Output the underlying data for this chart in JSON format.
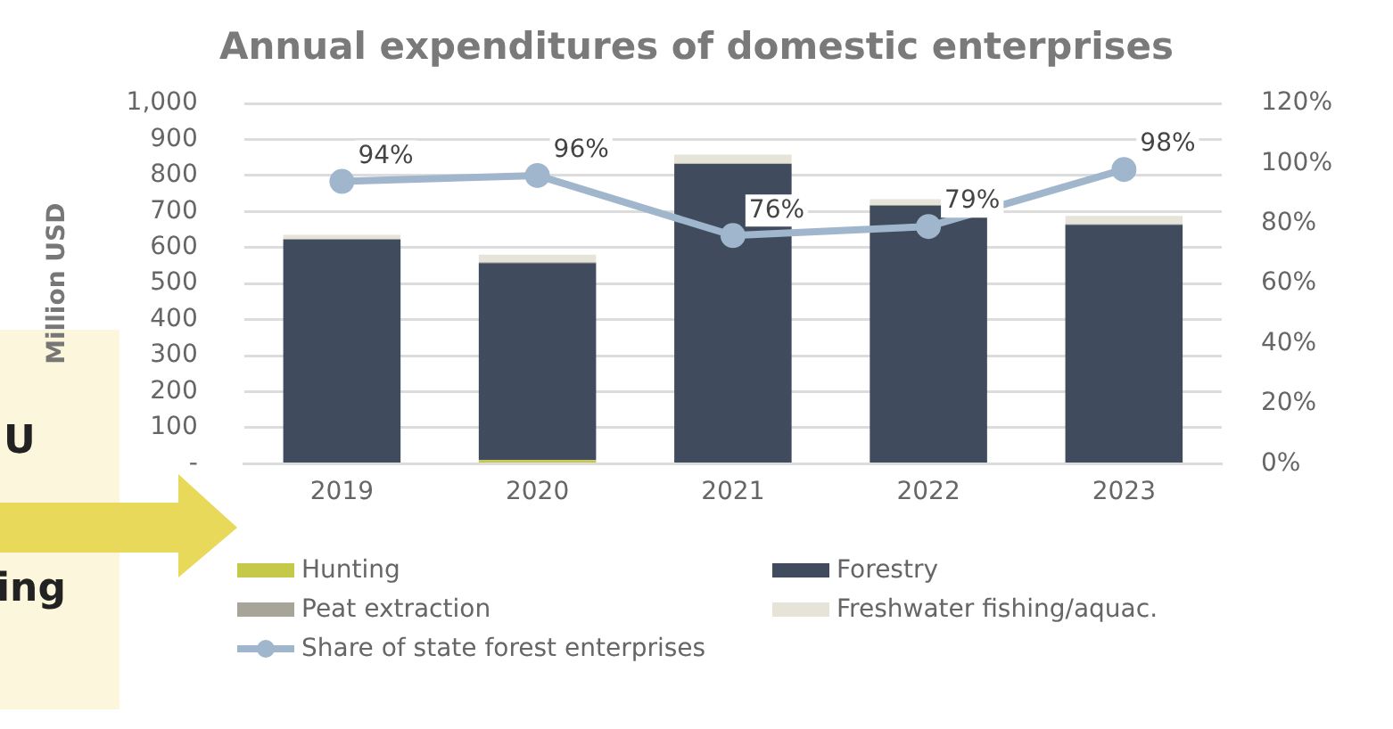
{
  "chart_data": {
    "type": "bar",
    "title": "Annual expenditures of domestic enterprises",
    "ylabel": "Million USD",
    "stacked": true,
    "categories": [
      "2019",
      "2020",
      "2021",
      "2022",
      "2023"
    ],
    "series": [
      {
        "name": "Hunting",
        "color": "#c4c94a",
        "values": [
          null,
          10,
          null,
          null,
          null
        ]
      },
      {
        "name": "Forestry",
        "color": "#404c5e",
        "values": [
          622,
          547,
          832,
          716,
          663
        ]
      },
      {
        "name": "Peat extraction",
        "color": "#a6a597",
        "values": [
          2,
          2,
          2,
          2,
          2
        ]
      },
      {
        "name": "Freshwater fishing/aquac.",
        "color": "#e6e4d8",
        "values": [
          11,
          21,
          24,
          16,
          23
        ]
      },
      {
        "name": "Share of state forest enterprises",
        "type": "line",
        "axis": "y2",
        "color": "#9fb6cc",
        "values": [
          94,
          96,
          76,
          79,
          98
        ],
        "value_labels": [
          "94%",
          "96%",
          "76%",
          "79%",
          "98%"
        ]
      }
    ],
    "ylim": [
      0,
      1000
    ],
    "yticks": [
      {
        "value": 0,
        "label": "-"
      },
      100,
      200,
      300,
      400,
      500,
      600,
      700,
      800,
      900,
      {
        "value": 1000,
        "label": "1,000"
      }
    ],
    "y2lim": [
      0,
      120
    ],
    "y2ticks": [
      {
        "value": 0,
        "label": "0%"
      },
      {
        "value": 20,
        "label": "20%"
      },
      {
        "value": 40,
        "label": "40%"
      },
      {
        "value": 60,
        "label": "60%"
      },
      {
        "value": 80,
        "label": "80%"
      },
      {
        "value": 100,
        "label": "100%"
      },
      {
        "value": 120,
        "label": "120%"
      }
    ],
    "grid": "y",
    "legend": "bottom",
    "marker": "circle",
    "annotations": [
      "U",
      "ing"
    ]
  }
}
